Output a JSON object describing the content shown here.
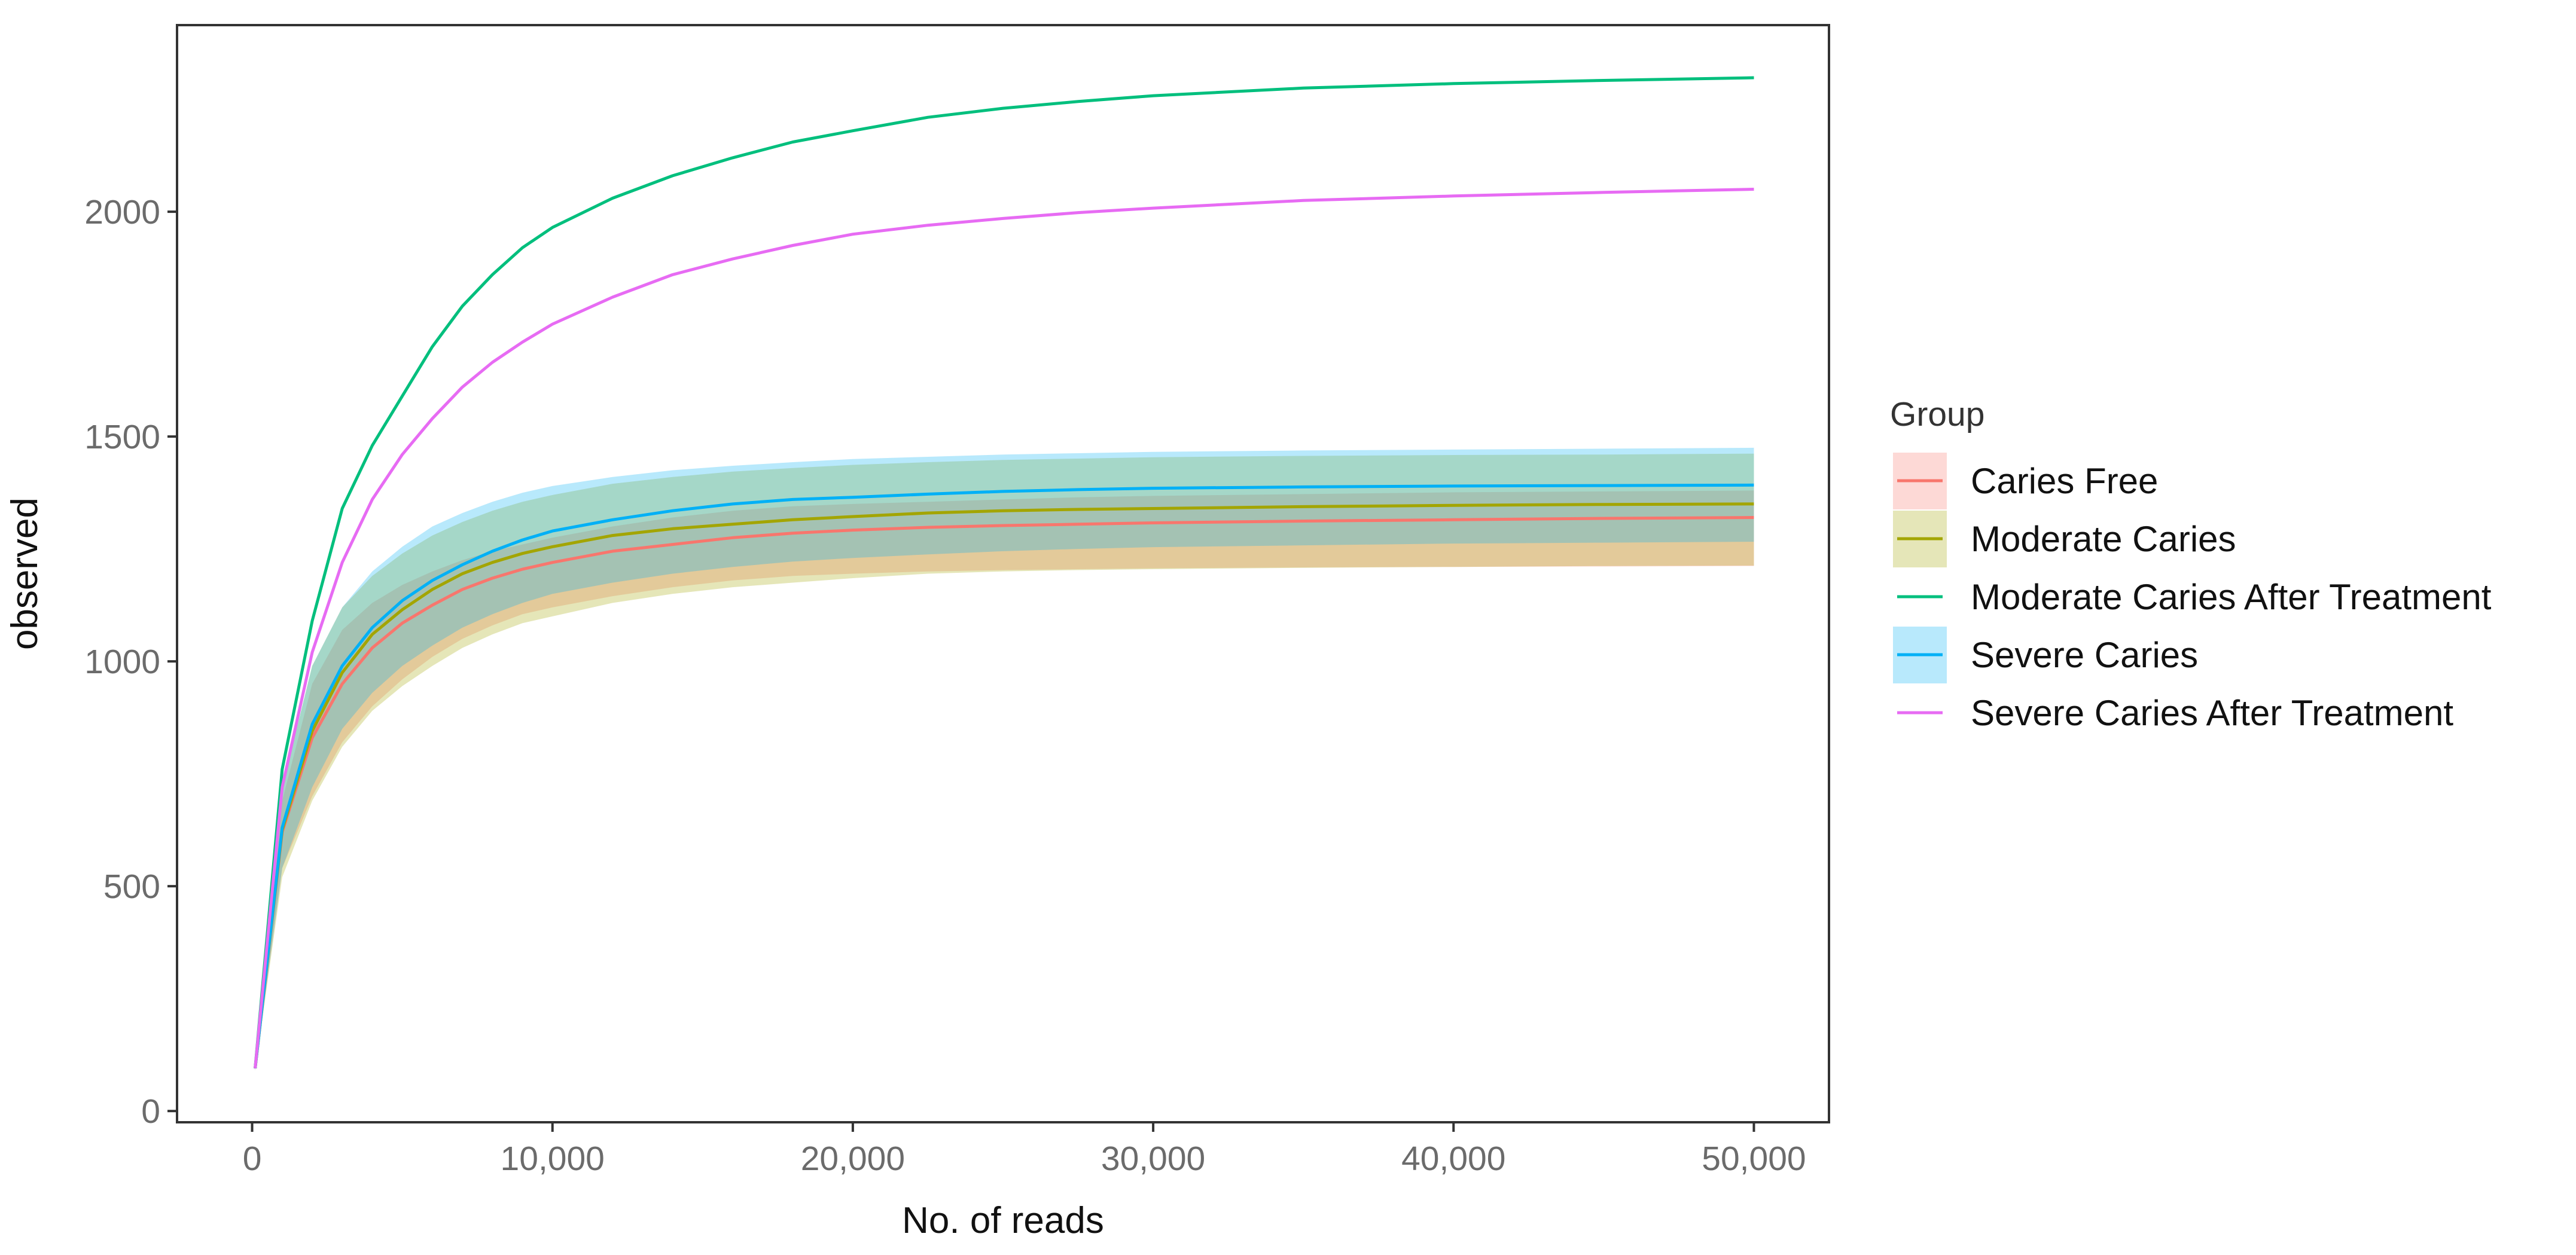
{
  "chart_data": {
    "type": "line",
    "xlabel": "No. of reads",
    "ylabel": "observed",
    "xlim": [
      -2500,
      52500
    ],
    "ylim": [
      -25,
      2415
    ],
    "x_ticks": [
      0,
      10000,
      20000,
      30000,
      40000,
      50000
    ],
    "x_tick_labels": [
      "0",
      "10,000",
      "20,000",
      "30,000",
      "40,000",
      "50,000"
    ],
    "y_ticks": [
      0,
      500,
      1000,
      1500,
      2000
    ],
    "y_tick_labels": [
      "0",
      "500",
      "1000",
      "1500",
      "2000"
    ],
    "grid": false,
    "legend": {
      "title": "Group",
      "position": "right"
    },
    "x": [
      100,
      1000,
      2000,
      3000,
      4000,
      5000,
      6000,
      7000,
      8000,
      9000,
      10000,
      12000,
      14000,
      16000,
      18000,
      20000,
      22500,
      25000,
      27500,
      30000,
      35000,
      40000,
      45000,
      50000
    ],
    "series": [
      {
        "name": "Caries Free",
        "color": "#F8766D",
        "values": [
          95,
          620,
          830,
          950,
          1030,
          1085,
          1125,
          1160,
          1185,
          1205,
          1220,
          1245,
          1260,
          1275,
          1285,
          1292,
          1298,
          1302,
          1305,
          1308,
          1312,
          1315,
          1318,
          1320
        ],
        "band_low": [
          90,
          540,
          700,
          820,
          900,
          960,
          1010,
          1050,
          1080,
          1105,
          1120,
          1145,
          1165,
          1180,
          1190,
          1195,
          1200,
          1203,
          1205,
          1207,
          1209,
          1210,
          1211,
          1212
        ],
        "band_high": [
          100,
          690,
          950,
          1070,
          1130,
          1170,
          1200,
          1225,
          1245,
          1260,
          1275,
          1300,
          1320,
          1335,
          1345,
          1350,
          1355,
          1360,
          1365,
          1368,
          1372,
          1376,
          1378,
          1380
        ]
      },
      {
        "name": "Moderate Caries",
        "color": "#A3A500",
        "values": [
          95,
          625,
          845,
          975,
          1060,
          1115,
          1160,
          1195,
          1220,
          1240,
          1255,
          1280,
          1295,
          1305,
          1315,
          1322,
          1330,
          1335,
          1338,
          1340,
          1344,
          1347,
          1349,
          1350
        ],
        "band_low": [
          90,
          520,
          690,
          810,
          890,
          945,
          990,
          1030,
          1060,
          1085,
          1100,
          1130,
          1150,
          1165,
          1175,
          1185,
          1195,
          1200,
          1203,
          1205,
          1208,
          1210,
          1212,
          1213
        ],
        "band_high": [
          100,
          720,
          990,
          1120,
          1190,
          1240,
          1280,
          1310,
          1335,
          1355,
          1370,
          1395,
          1410,
          1422,
          1430,
          1437,
          1443,
          1448,
          1451,
          1454,
          1457,
          1459,
          1460,
          1462
        ]
      },
      {
        "name": "Moderate Caries After Treatment",
        "color": "#00BF7D",
        "values": [
          95,
          760,
          1090,
          1340,
          1480,
          1590,
          1700,
          1790,
          1860,
          1920,
          1965,
          2030,
          2080,
          2120,
          2155,
          2180,
          2210,
          2230,
          2245,
          2258,
          2275,
          2285,
          2292,
          2298
        ]
      },
      {
        "name": "Severe Caries",
        "color": "#00B0F6",
        "values": [
          95,
          630,
          860,
          990,
          1075,
          1135,
          1180,
          1215,
          1245,
          1270,
          1290,
          1315,
          1335,
          1350,
          1360,
          1365,
          1372,
          1378,
          1382,
          1385,
          1388,
          1390,
          1391,
          1392
        ],
        "band_low": [
          90,
          540,
          720,
          850,
          930,
          990,
          1035,
          1075,
          1105,
          1130,
          1150,
          1175,
          1195,
          1210,
          1222,
          1230,
          1238,
          1245,
          1250,
          1254,
          1258,
          1262,
          1264,
          1266
        ],
        "band_high": [
          100,
          720,
          990,
          1120,
          1200,
          1255,
          1300,
          1330,
          1355,
          1375,
          1390,
          1410,
          1425,
          1435,
          1443,
          1450,
          1455,
          1460,
          1463,
          1466,
          1469,
          1471,
          1473,
          1475
        ]
      },
      {
        "name": "Severe Caries After Treatment",
        "color": "#E76BF3",
        "values": [
          95,
          720,
          1020,
          1220,
          1360,
          1460,
          1540,
          1610,
          1665,
          1710,
          1750,
          1810,
          1860,
          1895,
          1925,
          1950,
          1970,
          1985,
          1998,
          2008,
          2025,
          2035,
          2043,
          2050
        ]
      }
    ]
  }
}
